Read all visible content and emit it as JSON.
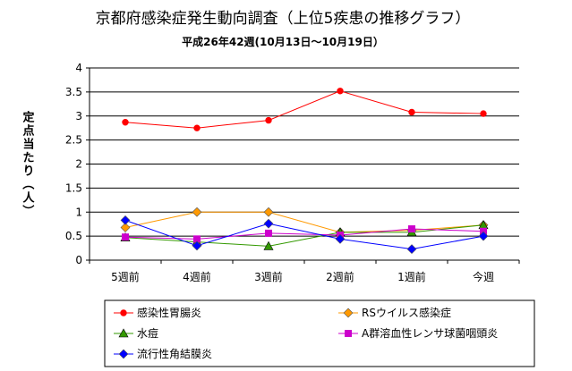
{
  "chart_data": {
    "type": "line",
    "title": "京都府感染症発生動向調査（上位5疾患の推移グラフ）",
    "subtitle": "平成26年42週(10月13日～10月19日）",
    "ylabel": "定点当たり（人）",
    "xlabel": "",
    "ylim": [
      0,
      4
    ],
    "yticks": [
      "0",
      "0.5",
      "1",
      "1.5",
      "2",
      "2.5",
      "3",
      "3.5",
      "4"
    ],
    "categories": [
      "5週前",
      "4週前",
      "3週前",
      "2週前",
      "1週前",
      "今週"
    ],
    "grid": true,
    "legend_position": "bottom",
    "series": [
      {
        "name": "感染性胃腸炎",
        "color": "#ff0000",
        "marker": "circle",
        "values": [
          2.87,
          2.75,
          2.91,
          3.52,
          3.08,
          3.05
        ]
      },
      {
        "name": "RSウイルス感染症",
        "color": "#ff9900",
        "marker": "diamond",
        "values": [
          0.68,
          1.0,
          1.0,
          0.58,
          0.62,
          0.73
        ]
      },
      {
        "name": "水痘",
        "color": "#339900",
        "marker": "triangle",
        "values": [
          0.47,
          0.38,
          0.29,
          0.58,
          0.58,
          0.73
        ]
      },
      {
        "name": "A群溶血性レンサ球菌咽頭炎",
        "color": "#cc00cc",
        "marker": "square",
        "values": [
          0.48,
          0.44,
          0.56,
          0.52,
          0.65,
          0.6
        ]
      },
      {
        "name": "流行性角結膜炎",
        "color": "#0000ff",
        "marker": "diamond",
        "values": [
          0.83,
          0.3,
          0.76,
          0.44,
          0.23,
          0.5
        ]
      }
    ]
  }
}
